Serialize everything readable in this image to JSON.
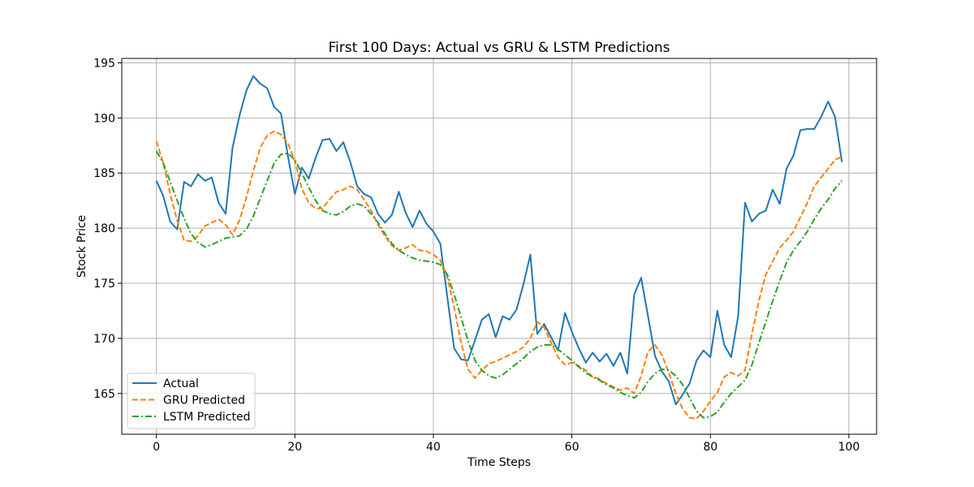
{
  "chart_data": {
    "type": "line",
    "title": "First 100 Days: Actual vs GRU & LSTM Predictions",
    "xlabel": "Time Steps",
    "ylabel": "Stock Price",
    "xlim": [
      -5,
      104
    ],
    "ylim": [
      161.3,
      195.4
    ],
    "xticks": [
      0,
      20,
      40,
      60,
      80,
      100
    ],
    "yticks": [
      165,
      170,
      175,
      180,
      185,
      190,
      195
    ],
    "grid": true,
    "legend_position": "lower-left",
    "series": [
      {
        "name": "Actual",
        "color": "#1f77b4",
        "style": "solid",
        "values": [
          184.3,
          182.9,
          180.6,
          179.9,
          184.2,
          183.8,
          184.9,
          184.3,
          184.6,
          182.3,
          181.3,
          187.3,
          190.2,
          192.5,
          193.8,
          193.1,
          192.7,
          191.0,
          190.4,
          186.5,
          183.1,
          185.5,
          184.5,
          186.4,
          188.0,
          188.1,
          187.0,
          187.8,
          186.0,
          183.8,
          183.1,
          182.8,
          181.3,
          180.5,
          181.2,
          183.3,
          181.4,
          180.1,
          181.6,
          180.4,
          179.7,
          178.6,
          173.8,
          169.1,
          168.1,
          168.0,
          169.8,
          171.7,
          172.2,
          170.1,
          172.0,
          171.7,
          172.6,
          174.9,
          177.6,
          170.4,
          171.3,
          170.1,
          168.9,
          172.3,
          170.6,
          169.1,
          167.8,
          168.7,
          167.9,
          168.6,
          167.5,
          168.7,
          166.8,
          174.0,
          175.5,
          172.0,
          168.4,
          167.0,
          166.1,
          164.0,
          164.9,
          165.9,
          168.0,
          168.9,
          168.3,
          172.5,
          169.4,
          168.3,
          172.0,
          182.3,
          180.6,
          181.3,
          181.6,
          183.5,
          182.2,
          185.4,
          186.6,
          188.9,
          189.0,
          189.0,
          190.1,
          191.5,
          190.1,
          186.0
        ],
        "data_name": "series-actual-line"
      },
      {
        "name": "GRU Predicted",
        "color": "#ff7f0e",
        "style": "dashed",
        "values": [
          187.9,
          185.9,
          183.1,
          180.7,
          178.9,
          178.8,
          179.3,
          180.2,
          180.5,
          180.8,
          180.3,
          179.4,
          180.7,
          182.8,
          185.2,
          187.3,
          188.4,
          188.8,
          188.5,
          187.7,
          186.1,
          183.6,
          182.3,
          181.8,
          181.8,
          182.6,
          183.3,
          183.5,
          183.8,
          183.5,
          182.6,
          181.6,
          180.3,
          179.3,
          178.4,
          178.0,
          178.2,
          178.5,
          178.0,
          177.9,
          177.6,
          177.1,
          175.6,
          172.8,
          169.6,
          167.2,
          166.4,
          167.1,
          167.7,
          167.9,
          168.2,
          168.5,
          168.8,
          169.2,
          170.0,
          171.5,
          171.0,
          169.6,
          168.3,
          167.6,
          167.8,
          167.5,
          167.1,
          166.5,
          166.3,
          165.9,
          165.6,
          165.3,
          165.5,
          165.0,
          166.6,
          168.8,
          169.4,
          168.5,
          166.9,
          165.0,
          163.6,
          162.8,
          162.7,
          163.4,
          164.3,
          165.1,
          166.5,
          166.9,
          166.6,
          167.1,
          170.4,
          173.4,
          175.8,
          177.0,
          178.2,
          178.9,
          179.7,
          181.0,
          182.3,
          183.8,
          184.6,
          185.4,
          186.2,
          186.5
        ],
        "data_name": "series-gru-line"
      },
      {
        "name": "LSTM Predicted",
        "color": "#2ca02c",
        "style": "dashdot",
        "values": [
          187.0,
          185.9,
          184.2,
          182.5,
          180.9,
          179.5,
          178.7,
          178.3,
          178.5,
          178.8,
          179.1,
          179.2,
          179.3,
          179.9,
          181.1,
          182.7,
          184.3,
          185.9,
          186.7,
          186.8,
          186.2,
          185.0,
          183.7,
          182.5,
          181.6,
          181.3,
          181.2,
          181.5,
          182.0,
          182.2,
          182.0,
          181.3,
          180.5,
          179.5,
          178.6,
          178.0,
          177.6,
          177.3,
          177.1,
          177.0,
          176.9,
          176.7,
          175.8,
          174.0,
          171.9,
          169.8,
          168.0,
          167.1,
          166.6,
          166.4,
          166.7,
          167.2,
          167.7,
          168.2,
          168.8,
          169.2,
          169.4,
          169.4,
          169.0,
          168.5,
          168.0,
          167.4,
          166.9,
          166.5,
          166.2,
          165.8,
          165.5,
          165.1,
          164.8,
          164.6,
          165.1,
          166.1,
          166.8,
          167.2,
          167.1,
          166.6,
          165.8,
          164.6,
          163.4,
          162.8,
          162.9,
          163.3,
          164.2,
          165.0,
          165.6,
          166.2,
          167.6,
          169.6,
          171.5,
          173.4,
          175.2,
          176.9,
          178.0,
          178.8,
          179.7,
          180.8,
          181.8,
          182.6,
          183.6,
          184.3
        ],
        "data_name": "series-lstm-line"
      }
    ]
  }
}
